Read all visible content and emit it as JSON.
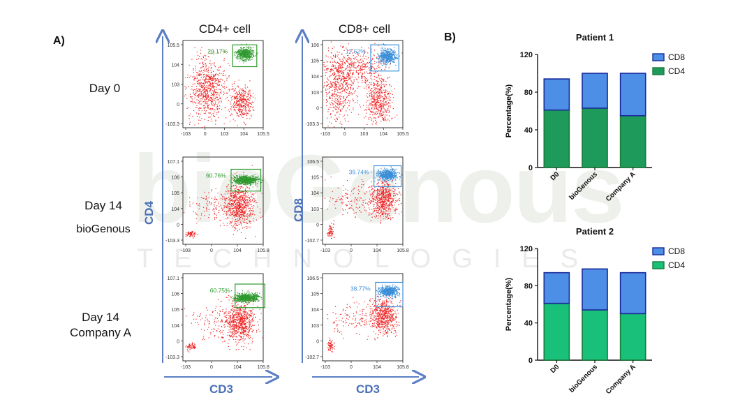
{
  "panels": {
    "a_label": "A)",
    "b_label": "B)"
  },
  "watermark": {
    "logo_text": "bioGenous",
    "sub_text": "TECHNOLOGIES"
  },
  "flow": {
    "col_titles": [
      "CD4+ cell",
      "CD8+ cell"
    ],
    "row_labels": [
      [
        "Day 0"
      ],
      [
        "Day 14",
        "bioGenous"
      ],
      [
        "Day 14",
        "Company  A"
      ]
    ],
    "axis_y_left": "CD4",
    "axis_y_right": "CD8",
    "axis_x": "CD3",
    "colors": {
      "scatter": "#ee2222",
      "cd4_gate": "#2e9a2e",
      "cd8_gate": "#3b8fd8",
      "axis": "#4a6fb5"
    },
    "plots": [
      {
        "row": 0,
        "col": 0,
        "gate_pct": "29.17%",
        "y_ticks": [
          "10^5.5",
          "10^4",
          "10^3",
          "0",
          "-10^3.3"
        ],
        "x_ticks": [
          "-10^3",
          "0",
          "10^3",
          "10^4",
          "10^5.5"
        ]
      },
      {
        "row": 0,
        "col": 1,
        "gate_pct": "17.52%",
        "y_ticks": [
          "10^6",
          "10^5",
          "10^4",
          "10^3",
          "0",
          "-10^3.3"
        ],
        "x_ticks": [
          "-10^3",
          "0",
          "10^3",
          "10^4",
          "10^5.5"
        ]
      },
      {
        "row": 1,
        "col": 0,
        "gate_pct": "60.76%",
        "y_ticks": [
          "10^7.1",
          "10^6",
          "10^5",
          "10^4",
          "0",
          "-10^3.3"
        ],
        "x_ticks": [
          "-10^3",
          "0",
          "10^4",
          "10^5.8"
        ]
      },
      {
        "row": 1,
        "col": 1,
        "gate_pct": "39.74%",
        "y_ticks": [
          "10^6.5",
          "10^5",
          "10^4",
          "10^3",
          "0",
          "-10^2.7"
        ],
        "x_ticks": [
          "-10^3",
          "0",
          "10^4",
          "10^5.8"
        ]
      },
      {
        "row": 2,
        "col": 0,
        "gate_pct": "60.75%",
        "y_ticks": [
          "10^7.1",
          "10^6",
          "10^5",
          "10^4",
          "0",
          "-10^3.3"
        ],
        "x_ticks": [
          "-10^3",
          "0",
          "10^4",
          "10^5.8"
        ]
      },
      {
        "row": 2,
        "col": 1,
        "gate_pct": "38.77%",
        "y_ticks": [
          "10^6.5",
          "10^5",
          "10^4",
          "10^3",
          "0",
          "-10^2.7"
        ],
        "x_ticks": [
          "-10^3",
          "0",
          "10^4",
          "10^5.8"
        ]
      }
    ]
  },
  "chart_data": [
    {
      "type": "bar",
      "stacked": true,
      "title": "Patient 1",
      "ylabel": "Percentage(%)",
      "xlabel": "",
      "categories": [
        "D0",
        "bioGenous",
        "Company A"
      ],
      "ylim": [
        0,
        120
      ],
      "yticks": [
        0,
        40,
        80,
        120
      ],
      "grid": false,
      "legend": "top-right",
      "series": [
        {
          "name": "CD4",
          "values": [
            61,
            63,
            55
          ],
          "color": "#1e9a5a"
        },
        {
          "name": "CD8",
          "values": [
            33,
            37,
            45
          ],
          "color": "#4d8fe6"
        }
      ],
      "legend_order": [
        "CD8",
        "CD4"
      ]
    },
    {
      "type": "bar",
      "stacked": true,
      "title": "Patient 2",
      "ylabel": "Percentage(%)",
      "xlabel": "",
      "categories": [
        "D0",
        "bioGenous",
        "Company A"
      ],
      "ylim": [
        0,
        120
      ],
      "yticks": [
        0,
        40,
        80,
        120
      ],
      "grid": false,
      "legend": "top-right",
      "series": [
        {
          "name": "CD4",
          "values": [
            61,
            54,
            50
          ],
          "color": "#19c07a"
        },
        {
          "name": "CD8",
          "values": [
            33,
            44,
            44
          ],
          "color": "#4d8fe6"
        }
      ],
      "legend_order": [
        "CD8",
        "CD4"
      ]
    }
  ]
}
